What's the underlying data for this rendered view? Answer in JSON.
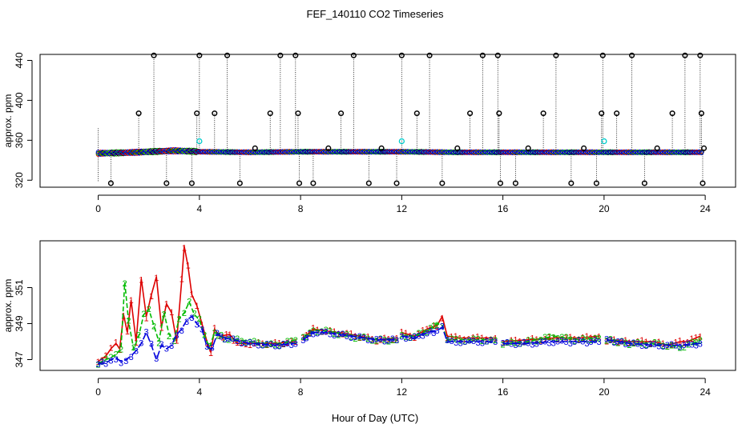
{
  "title": "FEF_140110  CO2 Timeseries",
  "xlabel": "Hour of Day (UTC)",
  "colors": {
    "series1": "#dd0000",
    "series2": "#00bb00",
    "series3": "#0000dd",
    "points": "#000000",
    "highlight": "#00cccc"
  },
  "chart_data": [
    {
      "type": "scatter",
      "panel": "top",
      "ylabel": "approx. ppm",
      "xlim": [
        -2.3,
        25.2
      ],
      "ylim": [
        313,
        446
      ],
      "xticks": [
        0,
        4,
        8,
        12,
        16,
        20,
        24
      ],
      "yticks": [
        320,
        360,
        400,
        440
      ],
      "baseline": [
        [
          0,
          347
        ],
        [
          1,
          347.5
        ],
        [
          2,
          348.5
        ],
        [
          3,
          349.5
        ],
        [
          3.7,
          349
        ],
        [
          4,
          348.5
        ],
        [
          6,
          348
        ],
        [
          8,
          348.5
        ],
        [
          10,
          348.5
        ],
        [
          12,
          348.5
        ],
        [
          14,
          348
        ],
        [
          16,
          348
        ],
        [
          18,
          348
        ],
        [
          20,
          348
        ],
        [
          22,
          348
        ],
        [
          23.8,
          348
        ]
      ],
      "spikes": [
        [
          0.5,
          317
        ],
        [
          1.6,
          387
        ],
        [
          2.2,
          445
        ],
        [
          2.7,
          317
        ],
        [
          3.7,
          317
        ],
        [
          3.9,
          387
        ],
        [
          4.0,
          445
        ],
        [
          4.6,
          387
        ],
        [
          5.1,
          445
        ],
        [
          5.6,
          317
        ],
        [
          6.2,
          352
        ],
        [
          6.8,
          387
        ],
        [
          7.2,
          445
        ],
        [
          7.8,
          445
        ],
        [
          7.9,
          387
        ],
        [
          7.95,
          317
        ],
        [
          8.5,
          317
        ],
        [
          9.1,
          352
        ],
        [
          9.6,
          387
        ],
        [
          10.1,
          445
        ],
        [
          10.7,
          317
        ],
        [
          11.2,
          352
        ],
        [
          11.8,
          317
        ],
        [
          12.0,
          445
        ],
        [
          12.6,
          387
        ],
        [
          13.1,
          445
        ],
        [
          13.6,
          317
        ],
        [
          14.2,
          352
        ],
        [
          14.7,
          387
        ],
        [
          15.2,
          445
        ],
        [
          15.8,
          445
        ],
        [
          15.85,
          387
        ],
        [
          15.9,
          317
        ],
        [
          16.5,
          317
        ],
        [
          17.0,
          352
        ],
        [
          17.6,
          387
        ],
        [
          18.1,
          445
        ],
        [
          18.7,
          317
        ],
        [
          19.2,
          352
        ],
        [
          19.7,
          317
        ],
        [
          19.9,
          387
        ],
        [
          19.95,
          445
        ],
        [
          20.5,
          387
        ],
        [
          21.1,
          445
        ],
        [
          21.6,
          317
        ],
        [
          22.1,
          352
        ],
        [
          22.7,
          387
        ],
        [
          23.2,
          445
        ],
        [
          23.8,
          445
        ],
        [
          23.85,
          387
        ],
        [
          23.9,
          317
        ],
        [
          23.95,
          352
        ]
      ],
      "highlights": [
        [
          4.0,
          359
        ],
        [
          12.0,
          359
        ],
        [
          20.0,
          359
        ]
      ]
    },
    {
      "type": "line",
      "panel": "bottom",
      "ylabel": "approx. ppm",
      "xlim": [
        -2.3,
        25.2
      ],
      "ylim": [
        346.4,
        353.6
      ],
      "xticks": [
        0,
        4,
        8,
        12,
        16,
        20,
        24
      ],
      "yticks": [
        347,
        349,
        351
      ],
      "marker_labels": [
        "1",
        "2",
        "3"
      ],
      "series": [
        {
          "name": "1",
          "points": [
            [
              0.0,
              346.9
            ],
            [
              0.3,
              347.2
            ],
            [
              0.5,
              347.6
            ],
            [
              0.7,
              347.9
            ],
            [
              0.85,
              347.6
            ],
            [
              1.0,
              349.5
            ],
            [
              1.15,
              348.5
            ],
            [
              1.3,
              350.3
            ],
            [
              1.5,
              348.0
            ],
            [
              1.7,
              351.5
            ],
            [
              1.9,
              349.4
            ],
            [
              2.1,
              350.6
            ],
            [
              2.3,
              351.6
            ],
            [
              2.5,
              348.8
            ],
            [
              2.7,
              350.1
            ],
            [
              2.9,
              349.6
            ],
            [
              3.1,
              348.0
            ],
            [
              3.3,
              351.4
            ],
            [
              3.4,
              353.3
            ],
            [
              3.55,
              352.2
            ],
            [
              3.7,
              350.6
            ],
            [
              3.9,
              350.0
            ],
            [
              4.1,
              349.0
            ],
            [
              4.3,
              348.0
            ],
            [
              4.45,
              347.4
            ],
            [
              4.6,
              348.7
            ],
            [
              4.8,
              348.3
            ],
            [
              5.2,
              348.4
            ],
            [
              5.5,
              347.9
            ],
            [
              6.0,
              347.9
            ],
            [
              7.0,
              347.9
            ],
            [
              7.8,
              348.0
            ],
            null,
            [
              8.1,
              348.2
            ],
            [
              8.5,
              348.7
            ],
            [
              9.0,
              348.6
            ],
            [
              10.0,
              348.4
            ],
            [
              11.0,
              348.1
            ],
            [
              11.8,
              348.2
            ],
            null,
            [
              12.0,
              348.5
            ],
            [
              12.5,
              348.3
            ],
            [
              13.0,
              348.7
            ],
            [
              13.4,
              348.9
            ],
            [
              13.6,
              349.4
            ],
            [
              13.8,
              348.3
            ],
            [
              14.3,
              348.2
            ],
            [
              15.0,
              348.2
            ],
            [
              15.7,
              348.2
            ],
            null,
            [
              16.0,
              348.0
            ],
            [
              17.0,
              348.1
            ],
            [
              18.0,
              348.2
            ],
            [
              19.0,
              348.2
            ],
            [
              19.8,
              348.3
            ],
            null,
            [
              20.1,
              348.1
            ],
            [
              21.0,
              348.0
            ],
            [
              22.0,
              348.0
            ],
            [
              22.5,
              347.8
            ],
            [
              23.0,
              348.0
            ],
            [
              23.3,
              348.0
            ],
            [
              23.8,
              348.3
            ]
          ]
        },
        {
          "name": "2",
          "points": [
            [
              0.0,
              346.8
            ],
            [
              0.3,
              347.0
            ],
            [
              0.5,
              347.1
            ],
            [
              0.7,
              347.3
            ],
            [
              0.9,
              347.6
            ],
            [
              1.05,
              351.3
            ],
            [
              1.2,
              349.1
            ],
            [
              1.4,
              347.6
            ],
            [
              1.6,
              348.3
            ],
            [
              1.8,
              349.5
            ],
            [
              2.0,
              349.8
            ],
            [
              2.2,
              348.9
            ],
            [
              2.4,
              348.0
            ],
            [
              2.6,
              349.6
            ],
            [
              2.8,
              348.4
            ],
            [
              3.0,
              348.1
            ],
            [
              3.2,
              349.3
            ],
            [
              3.4,
              349.6
            ],
            [
              3.6,
              350.2
            ],
            [
              3.8,
              349.5
            ],
            [
              4.0,
              349.2
            ],
            [
              4.2,
              348.3
            ],
            [
              4.4,
              347.7
            ],
            [
              4.6,
              348.5
            ],
            [
              5.0,
              348.2
            ],
            [
              6.0,
              348.0
            ],
            [
              7.0,
              347.8
            ],
            [
              7.8,
              348.1
            ],
            null,
            [
              8.1,
              348.2
            ],
            [
              8.5,
              348.6
            ],
            [
              9.0,
              348.6
            ],
            [
              10.0,
              348.3
            ],
            [
              11.0,
              348.1
            ],
            [
              11.8,
              348.1
            ],
            null,
            [
              12.0,
              348.3
            ],
            [
              12.5,
              348.3
            ],
            [
              13.0,
              348.6
            ],
            [
              13.4,
              349.0
            ],
            [
              13.6,
              348.9
            ],
            [
              13.8,
              348.1
            ],
            [
              14.5,
              348.1
            ],
            [
              15.7,
              348.1
            ],
            null,
            [
              16.0,
              347.9
            ],
            [
              17.0,
              348.0
            ],
            [
              18.0,
              348.3
            ],
            [
              19.0,
              348.1
            ],
            [
              19.8,
              348.2
            ],
            null,
            [
              20.1,
              348.1
            ],
            [
              21.0,
              347.9
            ],
            [
              22.0,
              347.9
            ],
            [
              22.5,
              347.8
            ],
            [
              23.0,
              347.7
            ],
            [
              23.5,
              347.9
            ],
            [
              23.8,
              348.1
            ]
          ]
        },
        {
          "name": "3",
          "points": [
            [
              0.0,
              346.8
            ],
            [
              0.3,
              346.8
            ],
            [
              0.5,
              347.0
            ],
            [
              0.7,
              347.1
            ],
            [
              0.9,
              346.9
            ],
            [
              1.1,
              347.0
            ],
            [
              1.3,
              347.2
            ],
            [
              1.5,
              347.5
            ],
            [
              1.7,
              347.9
            ],
            [
              1.9,
              348.5
            ],
            [
              2.1,
              347.8
            ],
            [
              2.3,
              347.0
            ],
            [
              2.5,
              347.8
            ],
            [
              2.7,
              347.6
            ],
            [
              2.9,
              347.8
            ],
            [
              3.1,
              348.4
            ],
            [
              3.3,
              348.7
            ],
            [
              3.5,
              349.2
            ],
            [
              3.7,
              349.4
            ],
            [
              3.9,
              349.0
            ],
            [
              4.1,
              348.7
            ],
            [
              4.3,
              347.7
            ],
            [
              4.5,
              347.6
            ],
            [
              4.7,
              348.4
            ],
            [
              5.0,
              348.2
            ],
            [
              6.0,
              347.9
            ],
            [
              7.0,
              347.8
            ],
            [
              7.8,
              347.9
            ],
            null,
            [
              8.1,
              348.1
            ],
            [
              8.5,
              348.5
            ],
            [
              9.0,
              348.5
            ],
            [
              10.0,
              348.3
            ],
            [
              11.0,
              348.1
            ],
            [
              11.8,
              348.1
            ],
            null,
            [
              12.0,
              348.3
            ],
            [
              12.5,
              348.2
            ],
            [
              13.0,
              348.5
            ],
            [
              13.4,
              348.6
            ],
            [
              13.6,
              348.8
            ],
            [
              13.8,
              348.0
            ],
            [
              14.5,
              348.0
            ],
            [
              15.7,
              348.0
            ],
            null,
            [
              16.0,
              347.9
            ],
            [
              17.0,
              347.9
            ],
            [
              18.0,
              348.0
            ],
            [
              19.0,
              348.0
            ],
            [
              19.8,
              348.0
            ],
            null,
            [
              20.1,
              348.1
            ],
            [
              21.0,
              347.9
            ],
            [
              22.0,
              347.8
            ],
            [
              23.0,
              347.8
            ],
            [
              23.8,
              347.9
            ]
          ]
        }
      ]
    }
  ]
}
